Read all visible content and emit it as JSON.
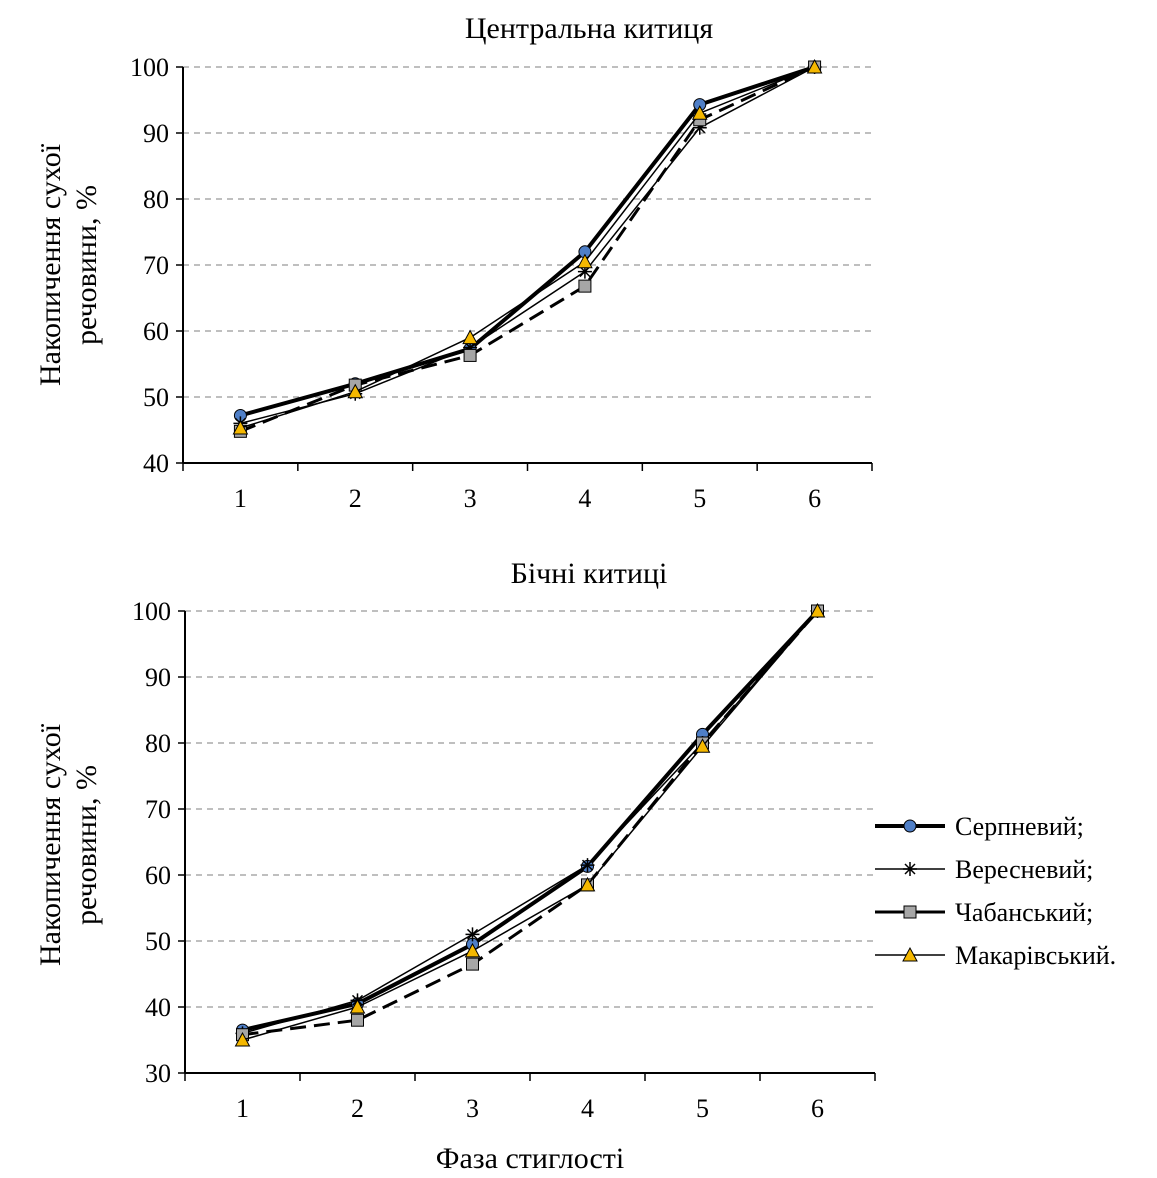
{
  "chart_data": [
    {
      "type": "line",
      "title": "Центральна китиця",
      "ylabel_lines": [
        "Накопичення сухої",
        "речовини, %"
      ],
      "xlabel": "",
      "x": [
        1,
        2,
        3,
        4,
        5,
        6
      ],
      "xticks": [
        "1",
        "2",
        "3",
        "4",
        "5",
        "6"
      ],
      "ylim": [
        40,
        100
      ],
      "yticks": [
        40,
        50,
        60,
        70,
        80,
        90,
        100
      ],
      "grid": "horizontal-dashed",
      "series": [
        {
          "name": "Серпневий;",
          "values": [
            47.2,
            52.0,
            57.3,
            72.0,
            94.3,
            100
          ]
        },
        {
          "name": "Вересневий;",
          "values": [
            46.0,
            50.5,
            57.5,
            69.0,
            90.8,
            100
          ]
        },
        {
          "name": "Чабанський;",
          "values": [
            44.8,
            51.8,
            56.3,
            66.8,
            92.0,
            100
          ]
        },
        {
          "name": "Макарівський.",
          "values": [
            45.3,
            50.8,
            59.0,
            70.5,
            93.0,
            100
          ]
        }
      ]
    },
    {
      "type": "line",
      "title": "Бічні китиці",
      "ylabel_lines": [
        "Накопичення сухої",
        "речовини, %"
      ],
      "xlabel": "Фаза стиглості",
      "x": [
        1,
        2,
        3,
        4,
        5,
        6
      ],
      "xticks": [
        "1",
        "2",
        "3",
        "4",
        "5",
        "6"
      ],
      "ylim": [
        30,
        100
      ],
      "yticks": [
        30,
        40,
        50,
        60,
        70,
        80,
        90,
        100
      ],
      "grid": "horizontal-dashed",
      "legend": "right",
      "series": [
        {
          "name": "Серпневий;",
          "values": [
            36.5,
            40.5,
            49.5,
            61.3,
            81.3,
            100
          ]
        },
        {
          "name": "Вересневий;",
          "values": [
            36.0,
            41.0,
            51.0,
            61.5,
            80.0,
            100
          ]
        },
        {
          "name": "Чабанський;",
          "values": [
            35.8,
            38.0,
            46.5,
            58.5,
            80.0,
            100
          ]
        },
        {
          "name": "Макарівський.",
          "values": [
            35.0,
            40.0,
            48.5,
            58.5,
            79.5,
            100
          ]
        }
      ]
    }
  ],
  "legend_items": [
    "Серпневий;",
    "Вересневий;",
    "Чабанський;",
    "Макарівський."
  ],
  "colors": {
    "line": "#000000",
    "grid": "#999999",
    "marker_serpnevyi": "#4f7fc7",
    "marker_chabanskyi": "#a6a6a6",
    "marker_makarivskyi": "#f5b800"
  }
}
